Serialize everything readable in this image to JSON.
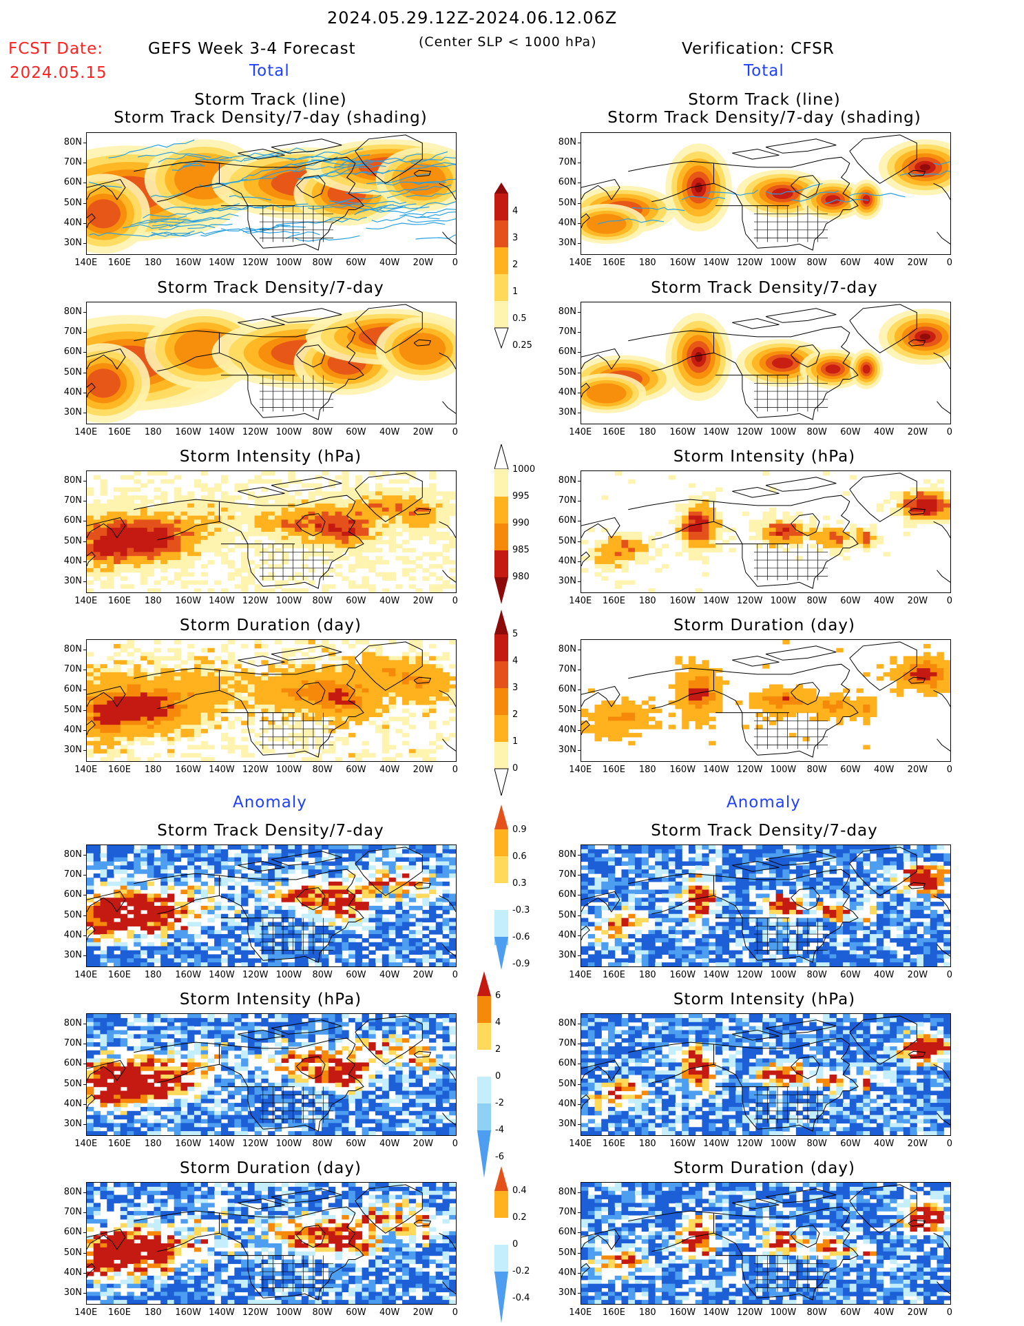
{
  "header": {
    "date_range": "2024.05.29.12Z-2024.06.12.06Z",
    "fcst_label": "FCST Date:",
    "fcst_date": "2024.05.15",
    "forecast_title": "GEFS Week 3-4 Forecast",
    "criterion": "(Center SLP < 1000 hPa)",
    "verification": "Verification: CFSR"
  },
  "sections": {
    "total": "Total",
    "anomaly": "Anomaly"
  },
  "panel_titles": {
    "track_line": "Storm Track (line)",
    "track_shading": "Storm Track Density/7-day (shading)",
    "density": "Storm Track Density/7-day",
    "intensity": "Storm Intensity (hPa)",
    "duration": "Storm Duration (day)"
  },
  "lat_labels": [
    "80N",
    "70N",
    "60N",
    "50N",
    "40N",
    "30N"
  ],
  "lon_labels": [
    "140E",
    "160E",
    "180",
    "160W",
    "140W",
    "120W",
    "100W",
    "80W",
    "60W",
    "40W",
    "20W",
    "0"
  ],
  "colorbars": {
    "density_total": [
      "4",
      "3",
      "2",
      "1",
      "0.5",
      "0.25"
    ],
    "intensity_total": [
      "1000",
      "995",
      "990",
      "985",
      "980"
    ],
    "duration_total": [
      "5",
      "4",
      "3",
      "2",
      "1",
      "0"
    ],
    "density_anom": [
      "0.9",
      "0.6",
      "0.3",
      "-0.3",
      "-0.6",
      "-0.9"
    ],
    "intensity_anom": [
      "6",
      "4",
      "2",
      "0",
      "-2",
      "-4",
      "-6"
    ],
    "duration_anom": [
      "0.4",
      "0.2",
      "0",
      "-0.2",
      "-0.4"
    ]
  },
  "colors": {
    "warm": [
      "#fff3b0",
      "#ffd95a",
      "#ffb21e",
      "#f6890a",
      "#e4511a",
      "#c41a12",
      "#8c0a0a"
    ],
    "cool": [
      "#c4eefb",
      "#8fd0f5",
      "#4d9ef0",
      "#1c5fd6"
    ],
    "track": "#29a0e0"
  }
}
